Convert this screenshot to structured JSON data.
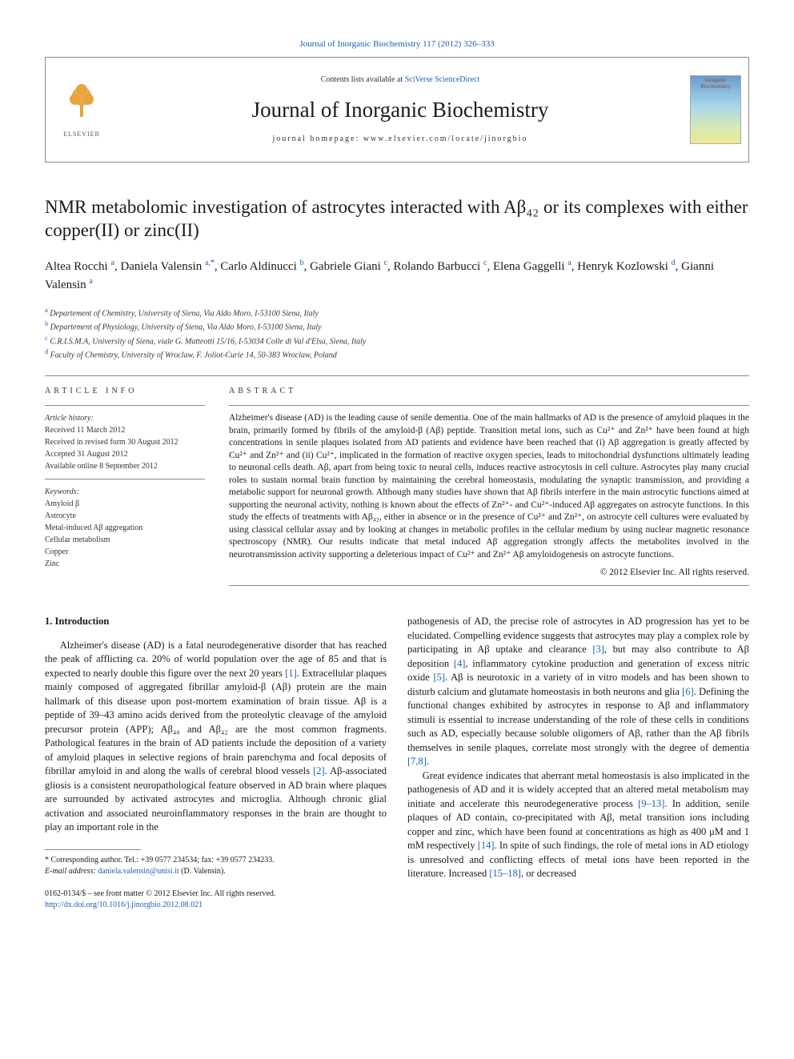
{
  "top_link": "Journal of Inorganic Biochemistry 117 (2012) 326–333",
  "header": {
    "contents_prefix": "Contents lists available at ",
    "contents_link": "SciVerse ScienceDirect",
    "journal_name": "Journal of Inorganic Biochemistry",
    "homepage": "journal homepage: www.elsevier.com/locate/jinorgbio",
    "publisher": "ELSEVIER",
    "cover_label_line1": "Inorganic",
    "cover_label_line2": "Biochemistry"
  },
  "article": {
    "title": "NMR metabolomic investigation of astrocytes interacted with Aβ₄₂ or its complexes with either copper(II) or zinc(II)",
    "authors_html": "Altea Rocchi <sup>a</sup>, Daniela Valensin <sup>a,*</sup>, Carlo Aldinucci <sup>b</sup>, Gabriele Giani <sup>c</sup>, Rolando Barbucci <sup>c</sup>, Elena Gaggelli <sup>a</sup>, Henryk Kozlowski <sup>d</sup>, Gianni Valensin <sup>a</sup>",
    "affiliations": [
      {
        "sup": "a",
        "text": " Departement of Chemistry, University of Siena, Via Aldo Moro, I-53100 Siena, Italy"
      },
      {
        "sup": "b",
        "text": " Departement of Physiology, University of Siena, Via Aldo Moro, I-53100 Siena, Italy"
      },
      {
        "sup": "c",
        "text": " C.R.I.S.M.A, University of Siena, viale G. Matteotti 15/16, I-53034 Colle di Val d'Elsa, Siena, Italy"
      },
      {
        "sup": "d",
        "text": " Faculty of Chemistry, University of Wroclaw, F. Joliot-Curie 14, 50-383 Wroclaw, Poland"
      }
    ]
  },
  "article_info": {
    "heading": "ARTICLE INFO",
    "history_label": "Article history:",
    "history": [
      "Received 11 March 2012",
      "Received in revised form 30 August 2012",
      "Accepted 31 August 2012",
      "Available online 8 September 2012"
    ],
    "keywords_label": "Keywords:",
    "keywords": [
      "Amyloid β",
      "Astrocyte",
      "Metal-induced Aβ aggregation",
      "Cellular metabolism",
      "Copper",
      "Zinc"
    ]
  },
  "abstract": {
    "heading": "ABSTRACT",
    "text": "Alzheimer's disease (AD) is the leading cause of senile dementia. One of the main hallmarks of AD is the presence of amyloid plaques in the brain, primarily formed by fibrils of the amyloid-β (Aβ) peptide. Transition metal ions, such as Cu²⁺ and Zn²⁺ have been found at high concentrations in senile plaques isolated from AD patients and evidence have been reached that (i) Aβ aggregation is greatly affected by Cu²⁺ and Zn²⁺ and (ii) Cu²⁺, implicated in the formation of reactive oxygen species, leads to mitochondrial dysfunctions ultimately leading to neuronal cells death. Aβ, apart from being toxic to neural cells, induces reactive astrocytosis in cell culture. Astrocytes play many crucial roles to sustain normal brain function by maintaining the cerebral homeostasis, modulating the synaptic transmission, and providing a metabolic support for neuronal growth. Although many studies have shown that Aβ fibrils interfere in the main astrocytic functions aimed at supporting the neuronal activity, nothing is known about the effects of Zn²⁺- and Cu²⁺-induced Aβ aggregates on astrocyte functions. In this study the effects of treatments with Aβ₄₂, either in absence or in the presence of Cu²⁺ and Zn²⁺, on astrocyte cell cultures were evaluated by using classical cellular assay and by looking at changes in metabolic profiles in the cellular medium by using nuclear magnetic resonance spectroscopy (NMR). Our results indicate that metal induced Aβ aggregation strongly affects the metabolites involved in the neurotransmission activity supporting a deleterious impact of Cu²⁺ and Zn²⁺ Aβ amyloidogenesis on astrocyte functions.",
    "copyright": "© 2012 Elsevier Inc. All rights reserved."
  },
  "body": {
    "section_heading": "1. Introduction",
    "col1_p1": "Alzheimer's disease (AD) is a fatal neurodegenerative disorder that has reached the peak of afflicting ca. 20% of world population over the age of 85 and that is expected to nearly double this figure over the next 20 years [1]. Extracellular plaques mainly composed of aggregated fibrillar amyloid-β (Aβ) protein are the main hallmark of this disease upon post-mortem examination of brain tissue. Aβ is a peptide of 39–43 amino acids derived from the proteolytic cleavage of the amyloid precursor protein (APP); Aβ₄₀ and Aβ₄₂ are the most common fragments. Pathological features in the brain of AD patients include the deposition of a variety of amyloid plaques in selective regions of brain parenchyma and focal deposits of fibrillar amyloid in and along the walls of cerebral blood vessels [2]. Aβ-associated gliosis is a consistent neuropathological feature observed in AD brain where plaques are surrounded by activated astrocytes and microglia. Although chronic glial activation and associated neuroinflammatory responses in the brain are thought to play an important role in the",
    "col2_p1": "pathogenesis of AD, the precise role of astrocytes in AD progression has yet to be elucidated. Compelling evidence suggests that astrocytes may play a complex role by participating in Aβ uptake and clearance [3], but may also contribute to Aβ deposition [4], inflammatory cytokine production and generation of excess nitric oxide [5]. Aβ is neurotoxic in a variety of in vitro models and has been shown to disturb calcium and glutamate homeostasis in both neurons and glia [6]. Defining the functional changes exhibited by astrocytes in response to Aβ and inflammatory stimuli is essential to increase understanding of the role of these cells in conditions such as AD, especially because soluble oligomers of Aβ, rather than the Aβ fibrils themselves in senile plaques, correlate most strongly with the degree of dementia [7,8].",
    "col2_p2": "Great evidence indicates that aberrant metal homeostasis is also implicated in the pathogenesis of AD and it is widely accepted that an altered metal metabolism may initiate and accelerate this neurodegenerative process [9–13]. In addition, senile plaques of AD contain, co-precipitated with Aβ, metal transition ions including copper and zinc, which have been found at concentrations as high as 400 μM and 1 mM respectively [14]. In spite of such findings, the role of metal ions in AD etiology is unresolved and conflicting effects of metal ions have been reported in the literature. Increased [15–18], or decreased"
  },
  "footer": {
    "corr_label": "* Corresponding author. Tel.: +39 0577 234534; fax: +39 0577 234233.",
    "email_label": "E-mail address: ",
    "email": "daniela.valensin@unisi.it",
    "email_suffix": " (D. Valensin).",
    "issn_line": "0162-0134/$ – see front matter © 2012 Elsevier Inc. All rights reserved.",
    "doi": "http://dx.doi.org/10.1016/j.jinorgbio.2012.08.021"
  },
  "refs": {
    "r1": "[1]",
    "r2": "[2]",
    "r3": "[3]",
    "r4": "[4]",
    "r5": "[5]",
    "r6": "[6]",
    "r78": "[7,8]",
    "r913": "[9–13]",
    "r14": "[14]",
    "r1518": "[15–18]"
  }
}
